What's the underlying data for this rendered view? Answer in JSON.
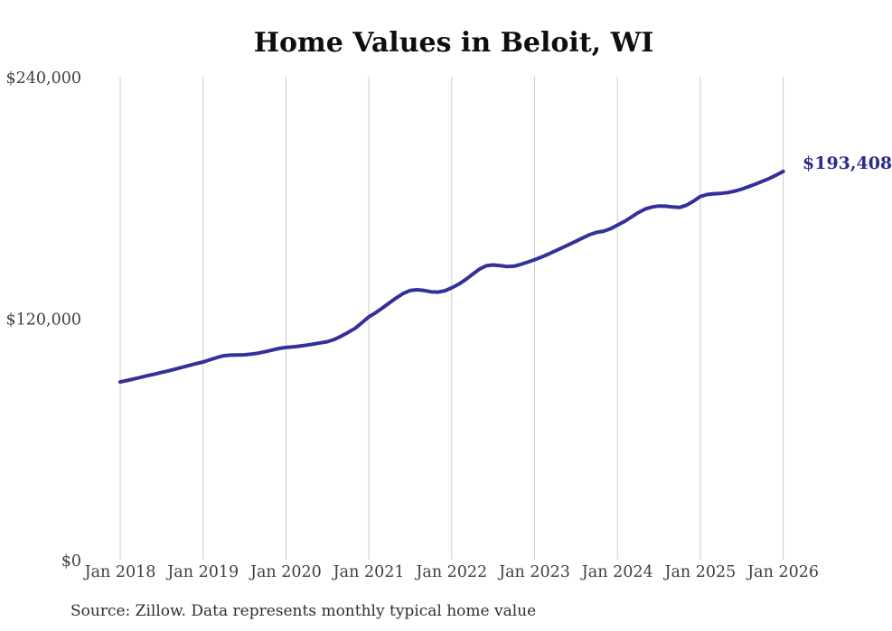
{
  "chart_data": {
    "type": "line",
    "title": "Home Values in Beloit, WI",
    "source_note": "Source: Zillow. Data represents monthly typical home value",
    "end_label": "$193,408",
    "latest_value": 193408,
    "frequency": "monthly",
    "grid": "vertical-only",
    "legend": "none",
    "ylim": [
      0,
      240000
    ],
    "x_tick_labels": [
      "Jan 2018",
      "Jan 2019",
      "Jan 2020",
      "Jan 2021",
      "Jan 2022",
      "Jan 2023",
      "Jan 2024",
      "Jan 2025",
      "Jan 2026"
    ],
    "y_ticks": [
      {
        "value": 240000,
        "label": "$240,000"
      },
      {
        "value": 120000,
        "label": "$120,000"
      },
      {
        "value": 0,
        "label": "$0"
      }
    ],
    "series": [
      {
        "name": "Typical home value",
        "start": "Jan 2018",
        "end": "Jan 2026",
        "color": "#343099",
        "values": [
          88800,
          89500,
          90300,
          91100,
          91900,
          92700,
          93500,
          94300,
          95200,
          96100,
          97000,
          97900,
          98700,
          99800,
          100900,
          101800,
          102100,
          102200,
          102300,
          102600,
          103100,
          103800,
          104600,
          105400,
          105900,
          106200,
          106600,
          107100,
          107600,
          108200,
          108800,
          109900,
          111500,
          113400,
          115400,
          118200,
          121100,
          123200,
          125600,
          128100,
          130600,
          132800,
          134200,
          134600,
          134200,
          133600,
          133400,
          134100,
          135500,
          137300,
          139600,
          142200,
          144800,
          146500,
          146900,
          146600,
          146100,
          146300,
          147200,
          148300,
          149500,
          150800,
          152300,
          153900,
          155500,
          157100,
          158700,
          160400,
          162000,
          163100,
          163700,
          164900,
          166700,
          168500,
          170700,
          172900,
          174700,
          175700,
          176200,
          176100,
          175700,
          175500,
          176600,
          178600,
          180900,
          181900,
          182300,
          182500,
          182900,
          183600,
          184600,
          185800,
          187100,
          188500,
          189900,
          191600,
          193408
        ]
      }
    ],
    "colors": {
      "line": "#343099",
      "end_label": "#2c2a8e",
      "gridline": "#cccccc",
      "tick_text": "#3f3f3f",
      "title_text": "#0e0e0e",
      "background": "#ffffff"
    }
  }
}
